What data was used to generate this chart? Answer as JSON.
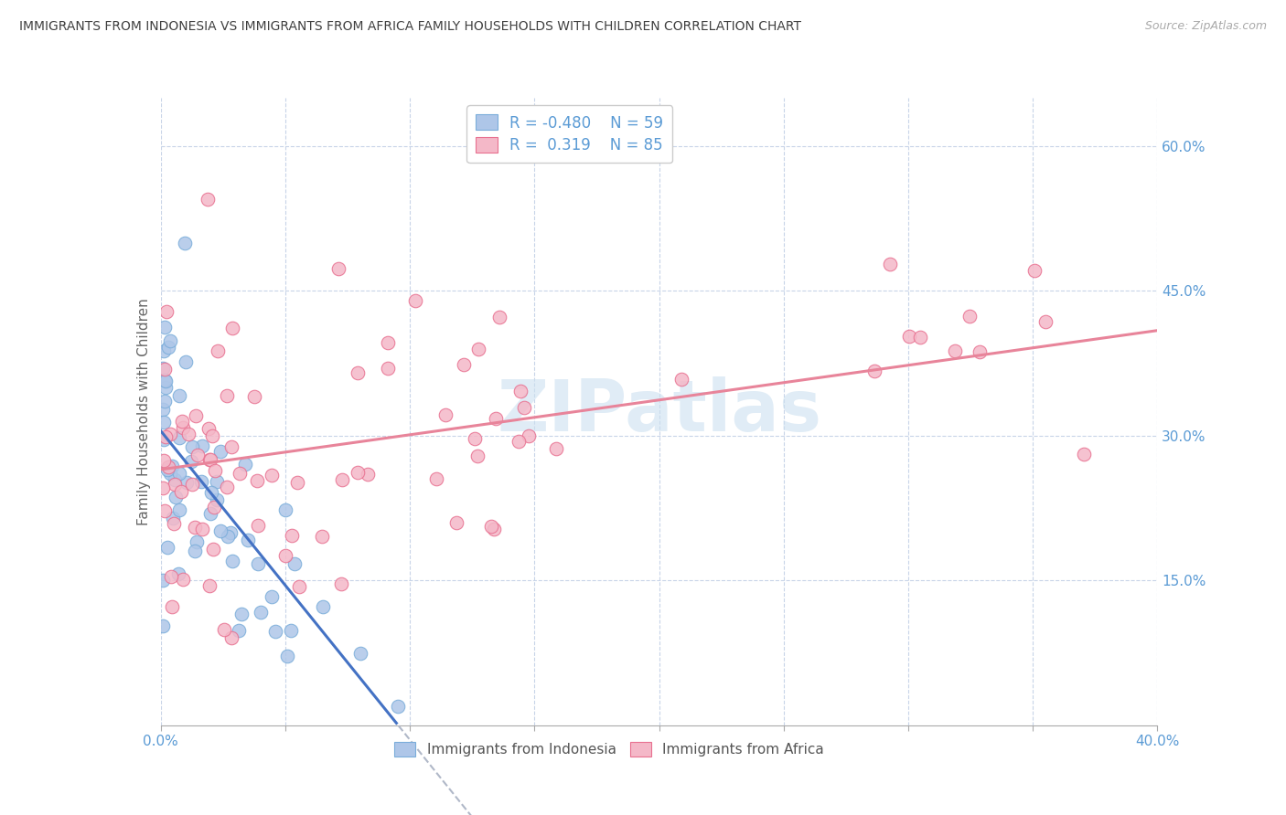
{
  "title": "IMMIGRANTS FROM INDONESIA VS IMMIGRANTS FROM AFRICA FAMILY HOUSEHOLDS WITH CHILDREN CORRELATION CHART",
  "source": "Source: ZipAtlas.com",
  "ylabel": "Family Households with Children",
  "legend_indonesia": {
    "R": -0.48,
    "N": 59,
    "color": "#aec6e8"
  },
  "legend_africa": {
    "R": 0.319,
    "N": 85,
    "color": "#f4b8c8"
  },
  "blue_line_color": "#4472C4",
  "pink_line_color": "#E8849A",
  "dashed_line_color": "#b0b8c8",
  "watermark": "ZIPatlas",
  "background_color": "#ffffff",
  "grid_color": "#c8d4e8",
  "title_color": "#404040",
  "axis_label_color": "#5B9BD5",
  "scatter_indonesia_color": "#aec6e8",
  "scatter_africa_color": "#f4b8c8",
  "scatter_indonesia_edge": "#7aadda",
  "scatter_africa_edge": "#e87090",
  "xlim": [
    0.0,
    0.4
  ],
  "ylim": [
    0.0,
    0.65
  ],
  "blue_line_intercept": 0.305,
  "blue_line_slope": -3.2,
  "pink_line_intercept": 0.265,
  "pink_line_slope": 0.36
}
